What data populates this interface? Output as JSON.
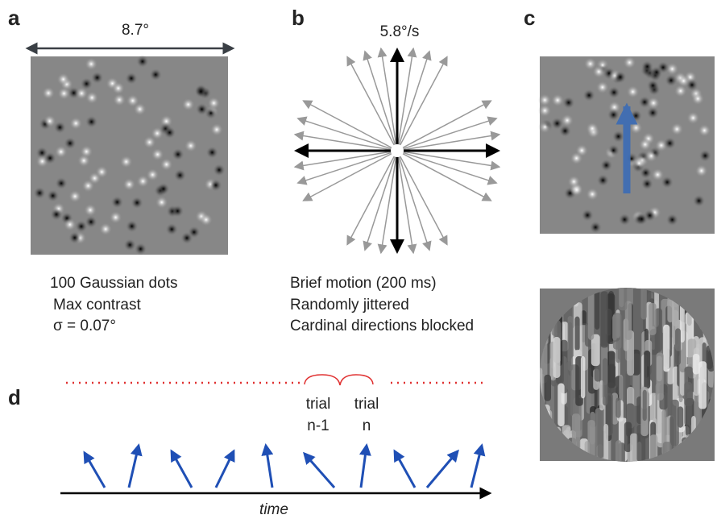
{
  "panels": {
    "a": {
      "label": "a",
      "width_label": "8.7°",
      "caption": [
        "100 Gaussian dots",
        "Max contrast",
        "σ = 0.07°"
      ]
    },
    "b": {
      "label": "b",
      "speed_label": "5.8°/s",
      "caption": [
        "Brief motion (200 ms)",
        "Randomly jittered",
        "Cardinal directions blocked"
      ]
    },
    "c": {
      "label": "c"
    },
    "d": {
      "label": "d",
      "trials": [
        {
          "line1": "trial",
          "line2": "n-1"
        },
        {
          "line1": "trial",
          "line2": "n"
        }
      ],
      "axis_label": "time"
    }
  }
}
